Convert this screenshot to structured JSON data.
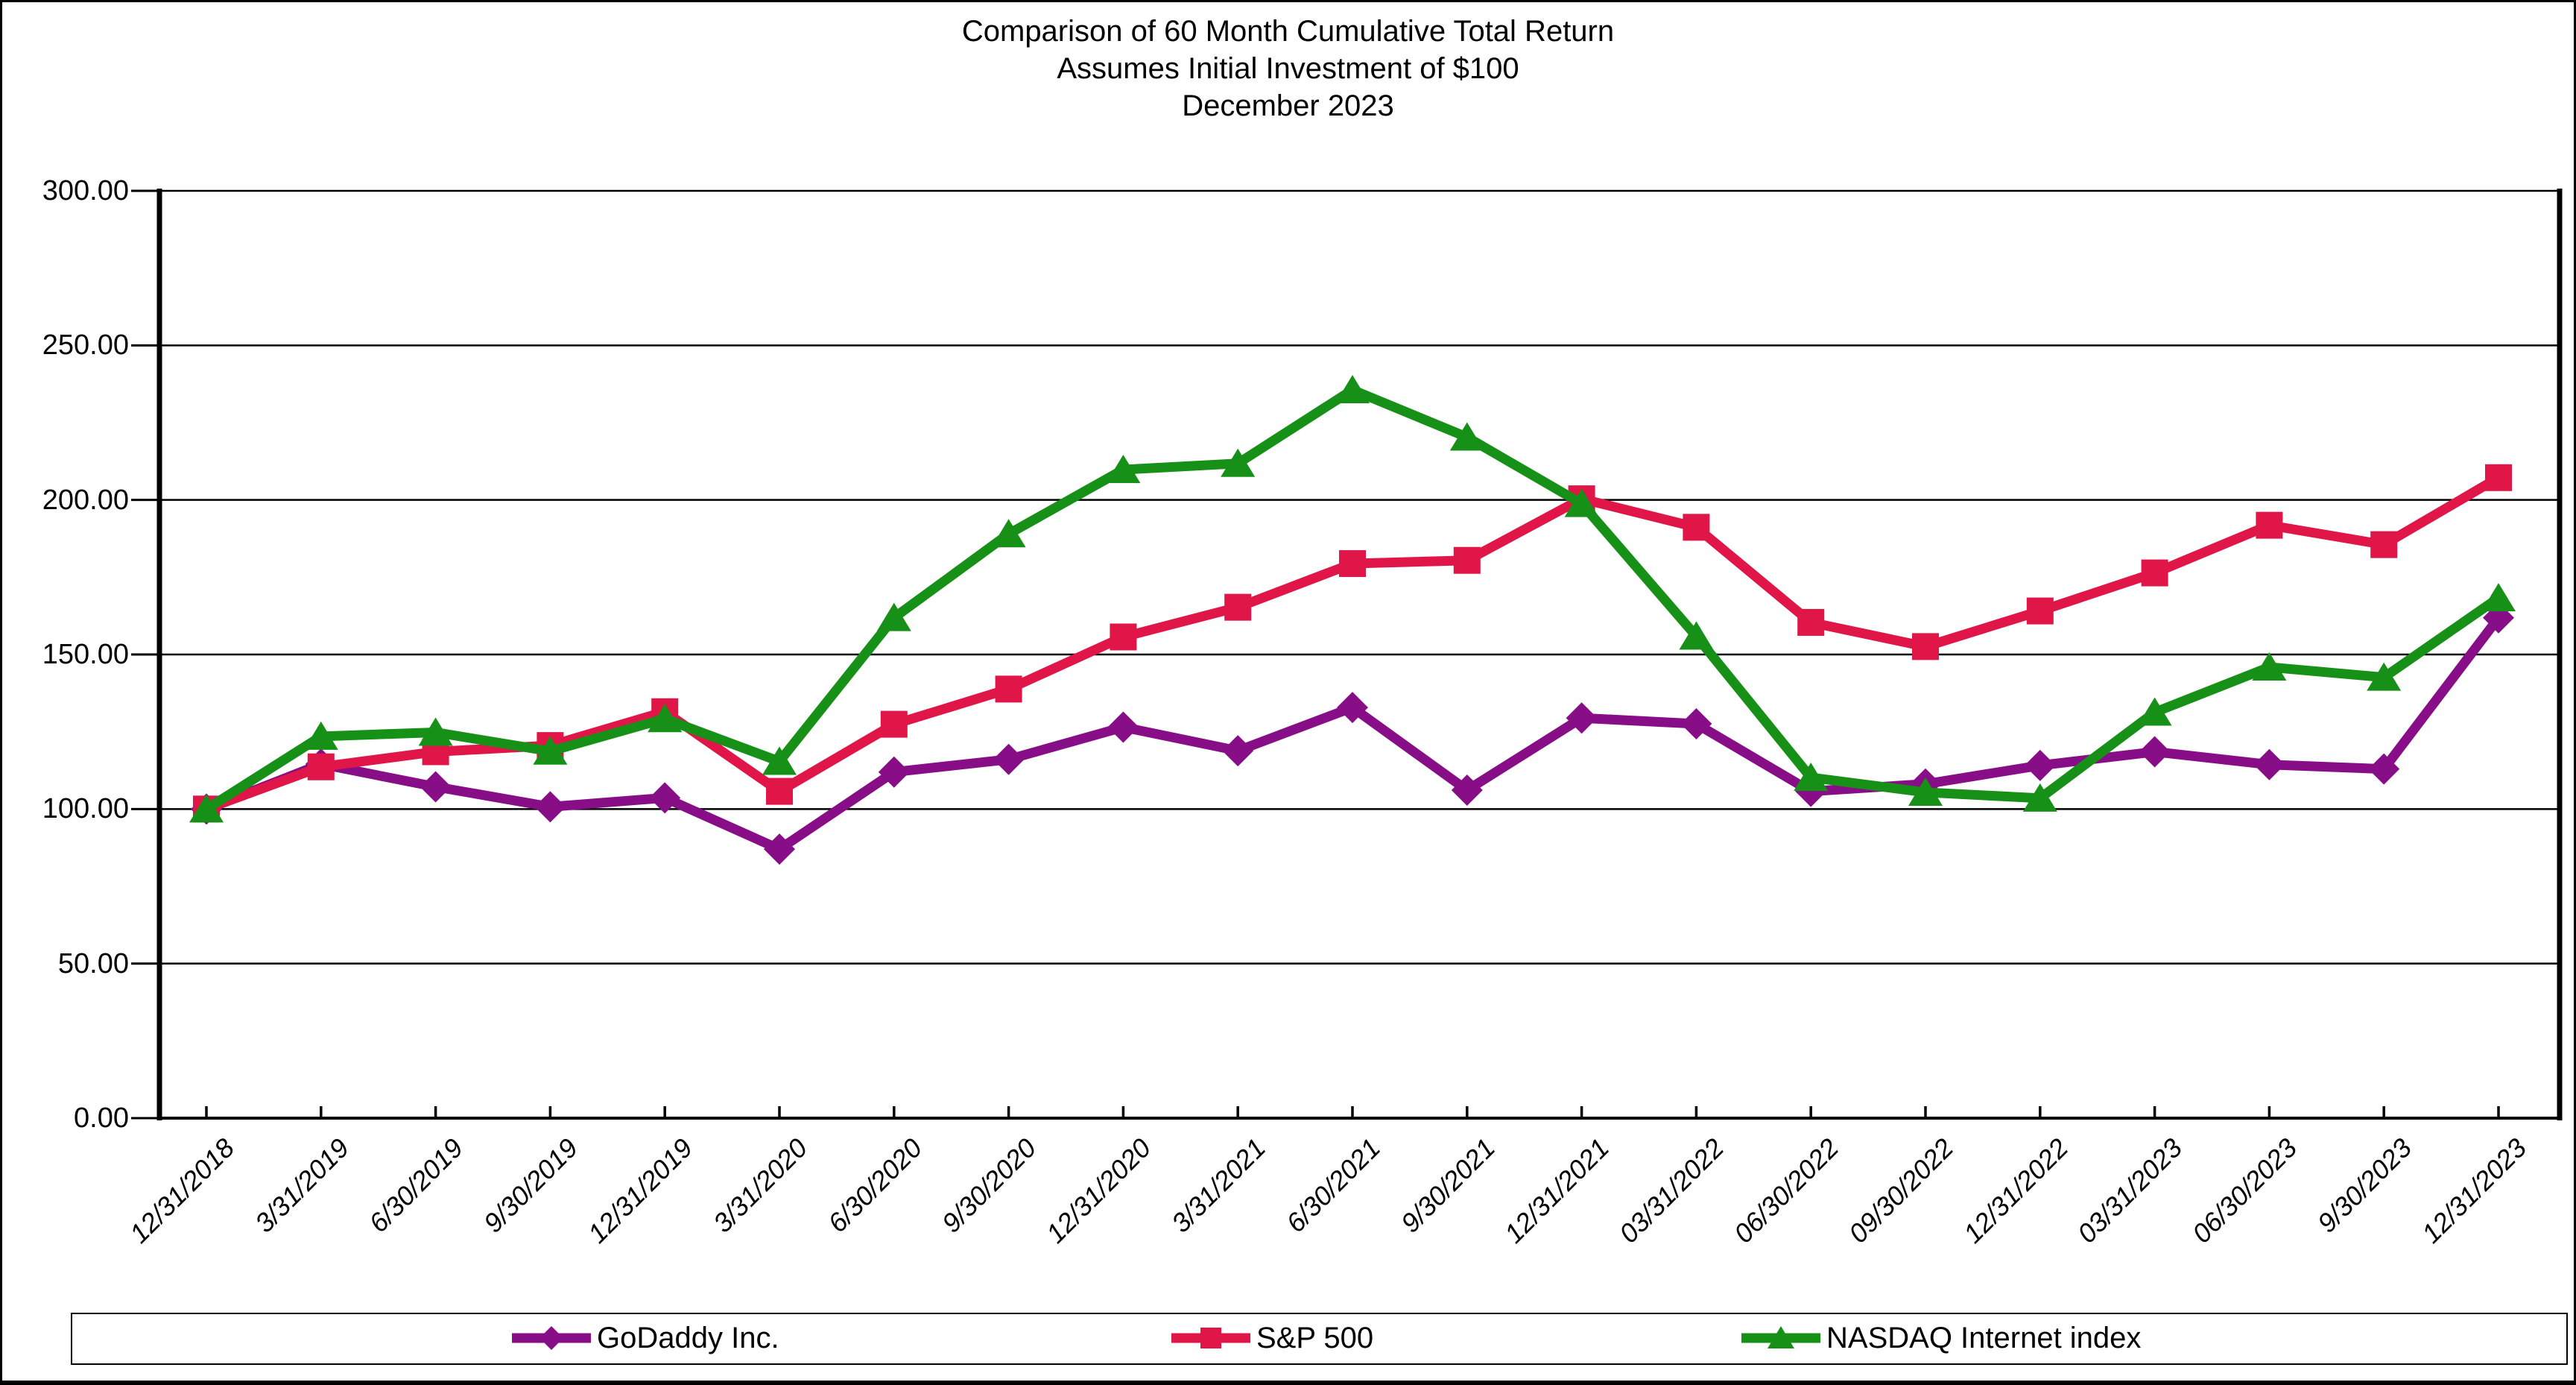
{
  "title": {
    "line1": "Comparison of 60 Month  Cumulative Total Return",
    "line2": "Assumes Initial Investment of $100",
    "line3": "December 2023"
  },
  "chart_data": {
    "type": "line",
    "title": "Comparison of 60 Month  Cumulative Total Return",
    "subtitle": "Assumes Initial Investment of $100",
    "period_label": "December 2023",
    "ylim": [
      0,
      300
    ],
    "y_tick_labels": [
      "300.00",
      "250.00",
      "200.00",
      "150.00",
      "100.00",
      "50.00",
      "0.00"
    ],
    "grid": "horizontal",
    "legend_position": "bottom",
    "x_labels": [
      "12/31/2018",
      "3/31/2019",
      "6/30/2019",
      "9/30/2019",
      "12/31/2019",
      "3/31/2020",
      "6/30/2020",
      "9/30/2020",
      "12/31/2020",
      "3/31/2021",
      "6/30/2021",
      "9/30/2021",
      "12/31/2021",
      "03/31/2022",
      "06/30/2022",
      "09/30/2022",
      "12/31/2022",
      "03/31/2023",
      "06/30/2023",
      "9/30/2023",
      "12/31/2023"
    ],
    "series": [
      {
        "name": "GoDaddy Inc.",
        "color": "#870E87",
        "marker": "diamond",
        "values": [
          100.0,
          114.54,
          107.2,
          100.72,
          103.62,
          87.03,
          111.97,
          116.06,
          126.5,
          118.85,
          132.84,
          106.1,
          129.45,
          127.57,
          105.72,
          108.1,
          114.11,
          118.52,
          114.37,
          112.95,
          161.87
        ]
      },
      {
        "name": "S&P 500",
        "color": "#E01648",
        "marker": "square",
        "values": [
          100.0,
          113.65,
          118.54,
          120.55,
          131.49,
          105.72,
          127.43,
          138.81,
          155.67,
          165.28,
          179.41,
          180.45,
          200.37,
          191.15,
          160.38,
          152.56,
          164.08,
          176.39,
          191.81,
          185.54,
          207.21
        ]
      },
      {
        "name": "NASDAQ Internet index",
        "color": "#169016",
        "marker": "triangle",
        "values": [
          100.0,
          123.5,
          124.8,
          118.7,
          129.2,
          115.4,
          161.9,
          189.0,
          209.8,
          211.8,
          235.6,
          220.3,
          198.8,
          155.9,
          110.2,
          105.4,
          103.5,
          131.3,
          145.9,
          142.6,
          168.3
        ]
      }
    ]
  }
}
